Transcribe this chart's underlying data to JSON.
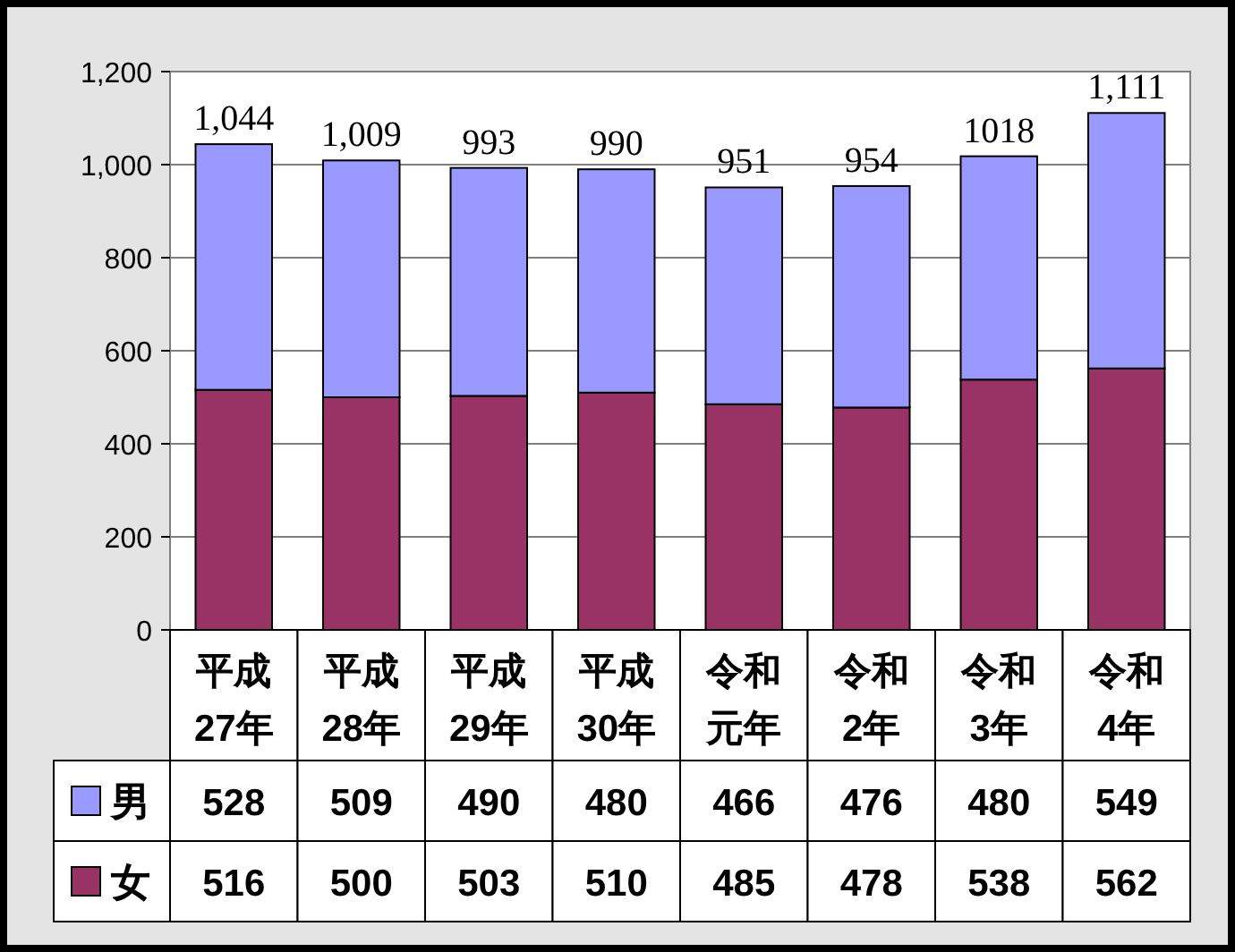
{
  "chart_data": {
    "type": "bar",
    "stacked": true,
    "categories": [
      "平成27年",
      "平成28年",
      "平成29年",
      "平成30年",
      "令和元年",
      "令和2年",
      "令和3年",
      "令和4年"
    ],
    "series": [
      {
        "name": "女",
        "color": "#993366",
        "values": [
          516,
          500,
          503,
          510,
          485,
          478,
          538,
          562
        ]
      },
      {
        "name": "男",
        "color": "#9999ff",
        "values": [
          528,
          509,
          490,
          480,
          466,
          476,
          480,
          549
        ]
      }
    ],
    "totals": [
      "1,044",
      "1,009",
      "993",
      "990",
      "951",
      "954",
      "1018",
      "1,111"
    ],
    "ylim": [
      0,
      1200
    ],
    "yticks": [
      0,
      200,
      400,
      600,
      800,
      {
        "value": 1000,
        "label": "1,000"
      },
      {
        "value": 1200,
        "label": "1,200"
      }
    ],
    "grid": "y",
    "data_labels": true,
    "legend": "bottom"
  }
}
